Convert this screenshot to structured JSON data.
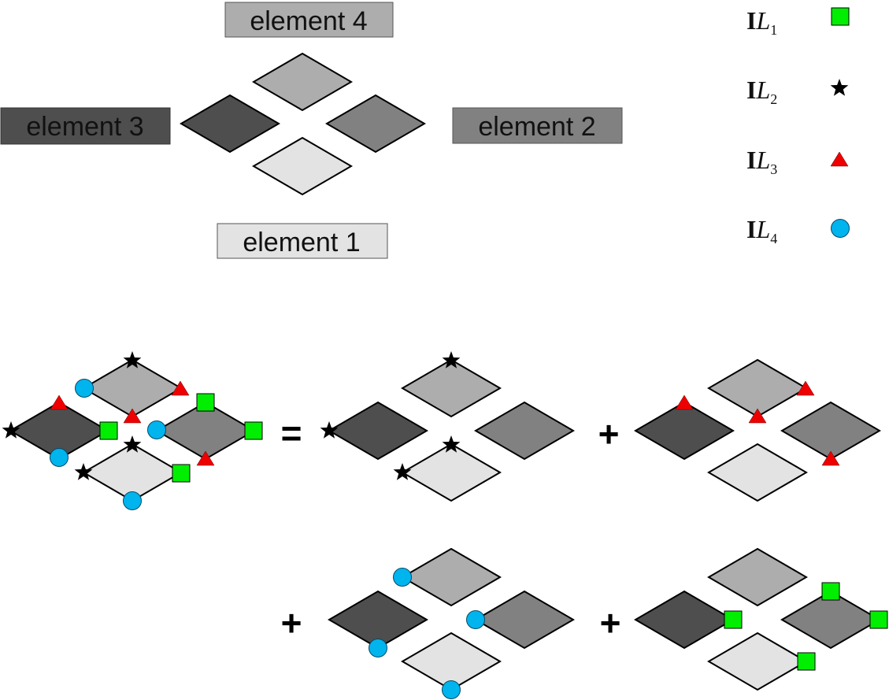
{
  "colors": {
    "element1": "#e3e3e3",
    "element2": "#818181",
    "element3": "#4e4e4e",
    "element4": "#adadad",
    "IL1": "#00ee00",
    "IL2": "#000000",
    "IL3": "#ee0000",
    "IL4": "#00b4ee"
  },
  "element_labels": {
    "e1": "element 1",
    "e2": "element 2",
    "e3": "element 3",
    "e4": "element 4"
  },
  "legend": [
    {
      "bold": "I",
      "italic": "L",
      "sub": "1",
      "marker": "green-square"
    },
    {
      "bold": "I",
      "italic": "L",
      "sub": "2",
      "marker": "black-star"
    },
    {
      "bold": "I",
      "italic": "L",
      "sub": "3",
      "marker": "red-triangle"
    },
    {
      "bold": "I",
      "italic": "L",
      "sub": "4",
      "marker": "cyan-circle"
    }
  ],
  "operators": {
    "equals": "=",
    "plus": "+"
  }
}
